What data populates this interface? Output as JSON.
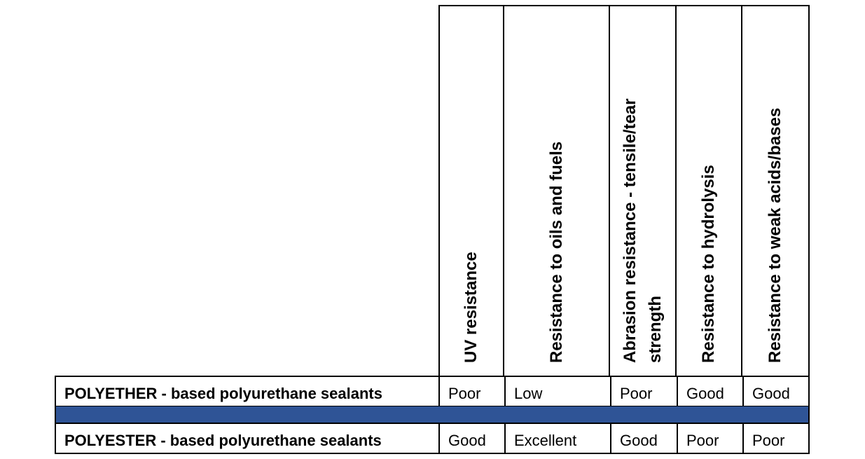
{
  "table": {
    "columns": [
      "UV resistance",
      "Resistance to oils and fuels",
      "Abrasion resistance - tensile/tear strength",
      "Resistance to hydrolysis",
      "Resistance to weak acids/bases"
    ],
    "rows": [
      {
        "label": "POLYETHER - based polyurethane sealants",
        "values": [
          "Poor",
          "Low",
          "Poor",
          "Good",
          "Good"
        ]
      },
      {
        "label": "POLYESTER - based polyurethane sealants",
        "values": [
          "Good",
          "Excellent",
          "Good",
          "Poor",
          "Poor"
        ]
      }
    ],
    "separator_color": "#2f5496"
  }
}
